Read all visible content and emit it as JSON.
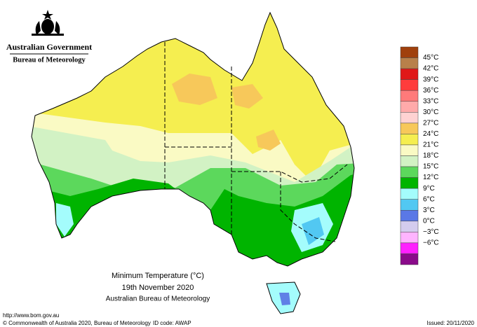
{
  "header": {
    "agency": "Australian Government",
    "bureau": "Bureau of Meteorology"
  },
  "map": {
    "title": "Minimum Temperature (°C)",
    "date": "19th November 2020",
    "source": "Australian Bureau of Meteorology"
  },
  "legend": {
    "labels": [
      "45°C",
      "42°C",
      "39°C",
      "36°C",
      "33°C",
      "30°C",
      "27°C",
      "24°C",
      "21°C",
      "18°C",
      "15°C",
      "12°C",
      "9°C",
      "6°C",
      "3°C",
      "0°C",
      "−3°C",
      "−6°C"
    ],
    "colors": [
      "#a0400c",
      "#b8804a",
      "#e01818",
      "#ff3c3c",
      "#ff7a7a",
      "#ffaaaa",
      "#ffd2d2",
      "#f7c85a",
      "#f5ee50",
      "#fafac4",
      "#d2f2c4",
      "#5cd85c",
      "#00b400",
      "#a4fcfc",
      "#52c8f2",
      "#5a78e6",
      "#d4ccee",
      "#ffb4ff",
      "#ff20ff",
      "#8a0a8a"
    ]
  },
  "footer": {
    "url": "http://www.bom.gov.au",
    "copyright": "© Commonwealth of Australia 2020, Bureau of Meteorology",
    "id": "ID code: AWAP",
    "issued": "Issued: 20/11/2020"
  }
}
